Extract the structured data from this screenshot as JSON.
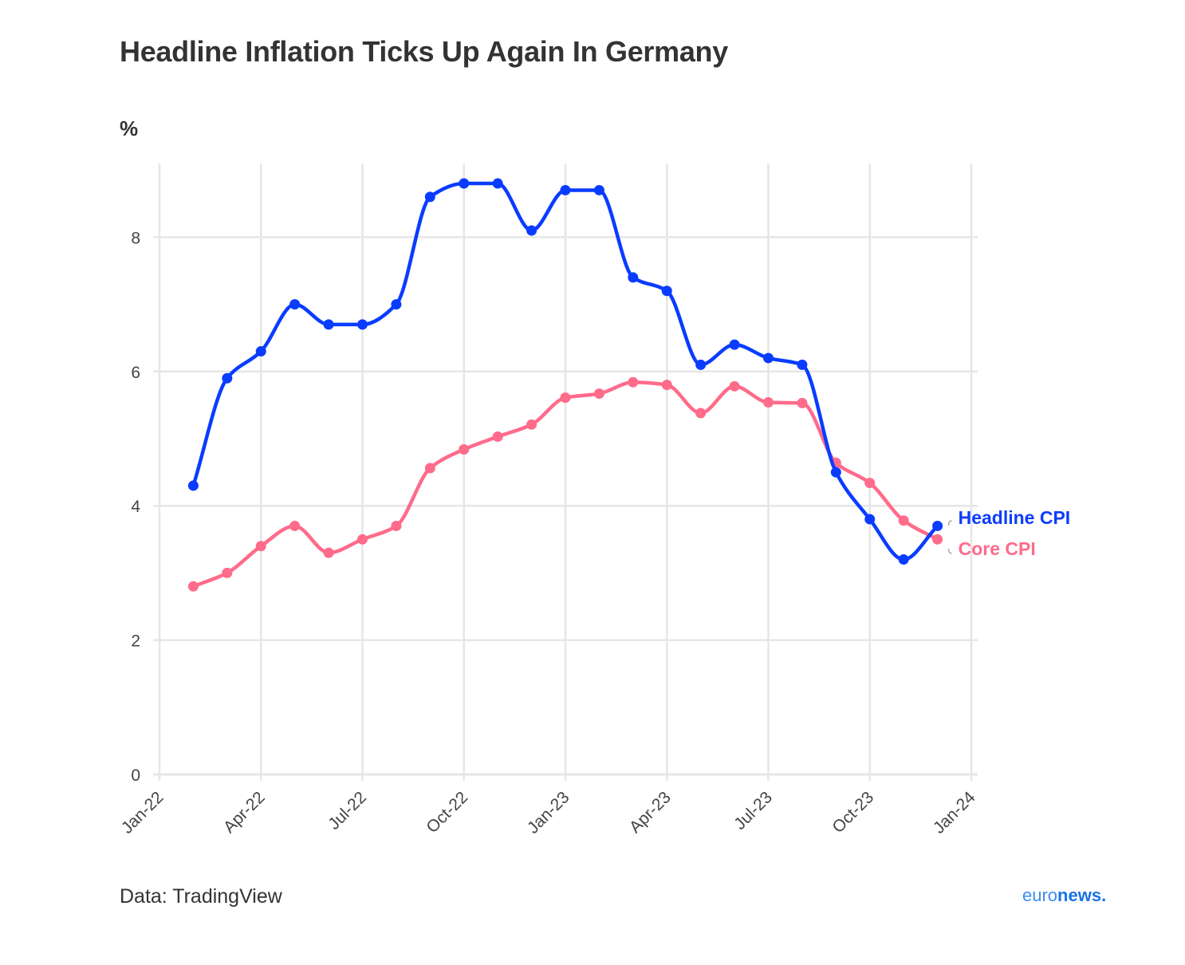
{
  "header": {
    "title": "Headline Inflation Ticks Up Again In Germany",
    "unit": "%"
  },
  "footer": {
    "source": "Data: TradingView",
    "logo_part1": "euro",
    "logo_part2": "news."
  },
  "colors": {
    "headline": "#0a3cff",
    "core": "#ff6b8a",
    "grid": "#e6e6e6",
    "text": "#333333"
  },
  "chart_data": {
    "type": "line",
    "x_ticks": [
      "Jan-22",
      "Apr-22",
      "Jul-22",
      "Oct-22",
      "Jan-23",
      "Apr-23",
      "Jul-23",
      "Oct-23",
      "Jan-24"
    ],
    "y_ticks": [
      "0",
      "2",
      "4",
      "6",
      "8"
    ],
    "ylim": [
      0,
      9.1
    ],
    "xlim": [
      "2022-01",
      "2024-01"
    ],
    "grid": true,
    "legend": "labels at line ends, right",
    "x": [
      "2022-02",
      "2022-03",
      "2022-04",
      "2022-05",
      "2022-06",
      "2022-07",
      "2022-08",
      "2022-09",
      "2022-10",
      "2022-11",
      "2022-12",
      "2023-01",
      "2023-02",
      "2023-03",
      "2023-04",
      "2023-05",
      "2023-06",
      "2023-07",
      "2023-08",
      "2023-09",
      "2023-10",
      "2023-11",
      "2023-12"
    ],
    "series": [
      {
        "name": "Headline CPI",
        "color": "#0a3cff",
        "values": [
          4.3,
          5.9,
          6.3,
          7.0,
          6.7,
          6.7,
          7.0,
          8.6,
          8.8,
          8.8,
          8.1,
          8.7,
          8.7,
          7.4,
          7.2,
          6.1,
          6.4,
          6.2,
          6.1,
          4.5,
          3.8,
          3.2,
          3.7
        ]
      },
      {
        "name": "Core CPI",
        "color": "#ff6b8a",
        "values": [
          2.8,
          3.0,
          3.4,
          3.7,
          3.3,
          3.5,
          3.7,
          4.56,
          4.84,
          5.03,
          5.21,
          5.61,
          5.67,
          5.84,
          5.8,
          5.38,
          5.78,
          5.54,
          5.53,
          4.64,
          4.34,
          3.78,
          3.5
        ]
      }
    ]
  }
}
